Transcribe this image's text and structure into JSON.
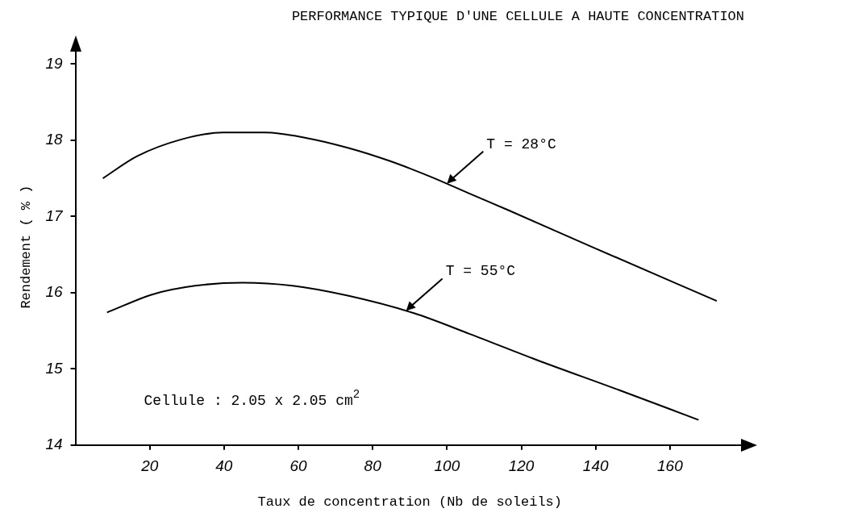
{
  "chart_data": {
    "type": "line",
    "title": "PERFORMANCE TYPIQUE D'UNE CELLULE A HAUTE CONCENTRATION",
    "xlabel": "Taux de concentration (Nb de soleils)",
    "ylabel": "Rendement ( % )",
    "xlim": [
      0,
      180
    ],
    "xticks": [
      20,
      40,
      60,
      80,
      100,
      120,
      140,
      160
    ],
    "ylim": [
      14,
      19.2
    ],
    "yticks": [
      14,
      15,
      16,
      17,
      18,
      19
    ],
    "grid": false,
    "marker": "none",
    "line_style": "solid",
    "series": [
      {
        "color": "#000000",
        "x": [
          7.4,
          16.6,
          28.5,
          39.7,
          50.9,
          62,
          73.3,
          84.4,
          95.6,
          106,
          116.6,
          139,
          172.6
        ],
        "values": [
          17.5,
          17.79,
          18.01,
          18.1,
          18.1,
          18.03,
          17.9,
          17.73,
          17.52,
          17.3,
          17.08,
          16.6,
          15.89
        ]
      },
      {
        "color": "#000000",
        "x": [
          8.5,
          21,
          32.2,
          45,
          58.4,
          73.3,
          91.1,
          106,
          124,
          146.4,
          167.7
        ],
        "values": [
          15.74,
          15.98,
          16.09,
          16.13,
          16.09,
          15.96,
          15.73,
          15.46,
          15.12,
          14.72,
          14.33
        ]
      }
    ],
    "annotations": [
      {
        "text": "T = 28°C",
        "x": 100,
        "y": 17.43
      },
      {
        "text": "T = 55°C",
        "x": 89,
        "y": 15.76
      },
      "Cellule : 2.05 x 2.05 cm$^{2}$"
    ]
  }
}
